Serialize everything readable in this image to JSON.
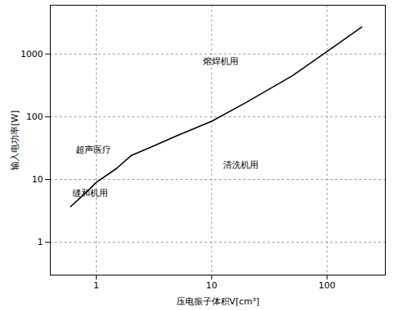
{
  "chart_data": {
    "type": "line",
    "x_label": "压电振子体积V[cm³]",
    "y_label": "输入电功率[W]",
    "x": [
      0.6,
      0.8,
      1,
      1.5,
      2,
      3,
      5,
      10,
      20,
      50,
      100,
      200
    ],
    "values": [
      3.7,
      6,
      9,
      15,
      24,
      33,
      50,
      85,
      170,
      450,
      1100,
      2700
    ],
    "color": "#000000",
    "log": true,
    "grid": true,
    "xlim": [
      0.4,
      320
    ],
    "ylim": [
      0.3,
      6000
    ],
    "xticks": [
      1,
      10,
      100
    ],
    "yticks": [
      1,
      10,
      100,
      1000
    ],
    "annotations": [
      {
        "text": "熔焊机用",
        "x": 12,
        "y": 770
      },
      {
        "text": "超声医疗",
        "x": 0.95,
        "y": 30
      },
      {
        "text": "清洗机用",
        "x": 18,
        "y": 17
      },
      {
        "text": "缝和机用",
        "x": 0.88,
        "y": 6
      }
    ]
  }
}
